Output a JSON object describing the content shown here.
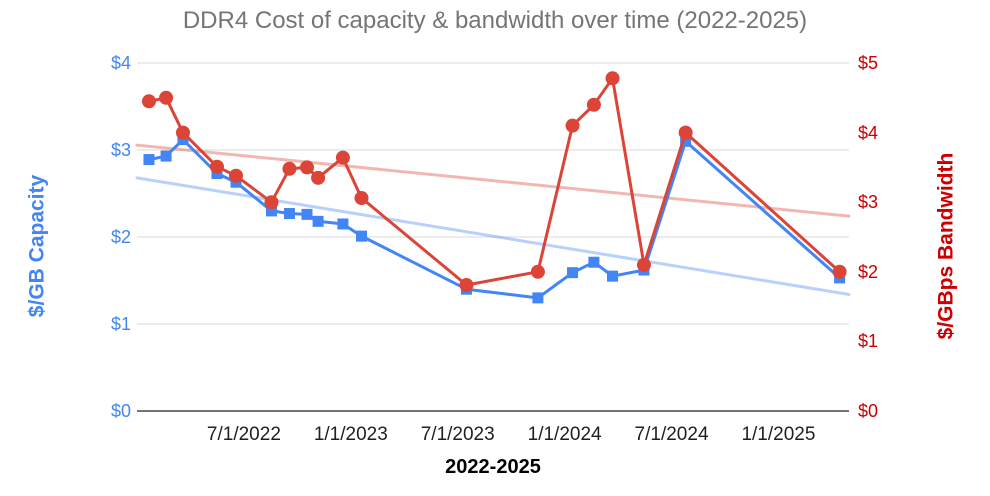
{
  "title": "DDR4 Cost of capacity & bandwidth over time (2022-2025)",
  "colors": {
    "background": "#FFFFFF",
    "title_text": "#757575",
    "capacity_blue": "#4285F4",
    "bandwidth_red": "#DB4437",
    "trend_blue": "rgba(66,133,244,0.38)",
    "trend_red": "rgba(219,68,55,0.38)",
    "left_axis_text": "#4285F4",
    "right_axis_text": "#CC0000",
    "x_tick_text": "#1F1F1F",
    "x_title_text": "#000000",
    "gridline": "#D9D9D9",
    "baseline": "#616161"
  },
  "left_axis": {
    "title": "$/GB Capacity",
    "ticks": [
      {
        "label": "$0",
        "value": 0
      },
      {
        "label": "$1",
        "value": 1
      },
      {
        "label": "$2",
        "value": 2
      },
      {
        "label": "$3",
        "value": 3
      },
      {
        "label": "$4",
        "value": 4
      }
    ]
  },
  "right_axis": {
    "title": "$/GBps Bandwidth",
    "ticks": [
      {
        "label": "$0",
        "value": 0
      },
      {
        "label": "$1",
        "value": 1
      },
      {
        "label": "$2",
        "value": 2
      },
      {
        "label": "$3",
        "value": 3
      },
      {
        "label": "$4",
        "value": 4
      },
      {
        "label": "$5",
        "value": 5
      }
    ]
  },
  "x_axis": {
    "title": "2022-2025",
    "ticks": [
      {
        "label": "7/1/2022",
        "value": 2022.5
      },
      {
        "label": "1/1/2023",
        "value": 2023.0
      },
      {
        "label": "7/1/2023",
        "value": 2023.5
      },
      {
        "label": "1/1/2024",
        "value": 2024.0
      },
      {
        "label": "7/1/2024",
        "value": 2024.5
      },
      {
        "label": "1/1/2025",
        "value": 2025.0
      }
    ]
  },
  "chart_data": {
    "type": "line",
    "title": "DDR4 Cost of capacity & bandwidth over time (2022-2025)",
    "xlabel": "2022-2025",
    "x_format": "decimal years (dates estimated from plot positions)",
    "xlim": [
      2022.0,
      2025.33
    ],
    "left_ylim": [
      0,
      4
    ],
    "right_ylim": [
      0,
      5
    ],
    "grid": "horizontal gridlines at left-axis ticks only; $0 baseline darker",
    "legend": "none",
    "x": [
      2022.056,
      2022.136,
      2022.215,
      2022.374,
      2022.463,
      2022.629,
      2022.713,
      2022.795,
      2022.847,
      2022.963,
      2023.05,
      2023.541,
      2023.875,
      2024.037,
      2024.137,
      2024.224,
      2024.371,
      2024.566,
      2025.286
    ],
    "series": [
      {
        "name": "$/GB Capacity",
        "axis": "left",
        "marker": "square",
        "color": "#4285F4",
        "values": [
          2.89,
          2.93,
          3.12,
          2.73,
          2.63,
          2.3,
          2.27,
          2.26,
          2.18,
          2.15,
          2.01,
          1.4,
          1.3,
          1.59,
          1.71,
          1.55,
          1.62,
          3.1,
          1.53
        ]
      },
      {
        "name": "$/GBps Bandwidth",
        "axis": "right",
        "marker": "circle",
        "color": "#DB4437",
        "values": [
          4.45,
          4.5,
          4.0,
          3.51,
          3.38,
          3.0,
          3.48,
          3.5,
          3.35,
          3.64,
          3.06,
          1.81,
          2.0,
          4.1,
          4.4,
          4.78,
          2.1,
          4.0,
          2.0
        ]
      }
    ],
    "trendlines": [
      {
        "series": "$/GB Capacity",
        "axis": "left",
        "x_range": [
          2022.0,
          2025.33
        ],
        "y_range": [
          2.68,
          1.34
        ]
      },
      {
        "series": "$/GBps Bandwidth",
        "axis": "right",
        "x_range": [
          2022.0,
          2025.33
        ],
        "y_range": [
          3.82,
          2.8
        ]
      }
    ]
  }
}
